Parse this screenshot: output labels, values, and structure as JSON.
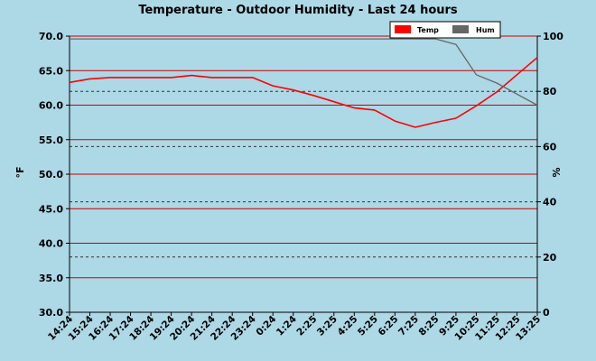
{
  "chart_data": {
    "type": "line",
    "title": "Temperature - Outdoor Humidity - Last 24 hours",
    "ylabel_left": "°F",
    "ylabel_right": "%",
    "left_axis": {
      "ylim": [
        30.0,
        70.0
      ],
      "ticks": [
        "30.0",
        "35.0",
        "40.0",
        "45.0",
        "50.0",
        "55.0",
        "60.0",
        "65.0",
        "70.0"
      ]
    },
    "right_axis": {
      "ylim": [
        0,
        100
      ],
      "ticks": [
        "0",
        "20",
        "40",
        "60",
        "80",
        "100"
      ]
    },
    "categories": [
      "14:24",
      "15:24",
      "16:24",
      "17:24",
      "18:24",
      "19:24",
      "20:24",
      "21:24",
      "22:24",
      "23:24",
      "0:24",
      "1:24",
      "2:25",
      "3:25",
      "4:25",
      "5:25",
      "6:25",
      "7:25",
      "8:25",
      "9:25",
      "10:25",
      "11:25",
      "12:25",
      "13:25"
    ],
    "series": [
      {
        "name": "Temp",
        "axis": "left",
        "color": "#ff0000",
        "values": [
          63.3,
          63.8,
          64.0,
          64.0,
          64.0,
          64.0,
          64.3,
          64.0,
          64.0,
          64.0,
          62.8,
          62.2,
          61.4,
          60.5,
          59.6,
          59.3,
          57.7,
          56.8,
          57.5,
          58.1,
          59.9,
          61.9,
          64.4,
          66.9
        ]
      },
      {
        "name": "Hum",
        "axis": "right",
        "color": "#666666",
        "values": [
          99,
          99,
          99,
          99,
          99,
          99,
          99,
          99,
          99,
          99,
          99,
          99,
          99,
          99,
          99,
          99,
          99,
          99,
          99,
          97,
          86,
          83,
          79,
          75
        ]
      }
    ],
    "grid": {
      "left_axis_lines": "solid red",
      "right_axis_lines": "dashed black"
    },
    "legend_position": "top-right"
  }
}
